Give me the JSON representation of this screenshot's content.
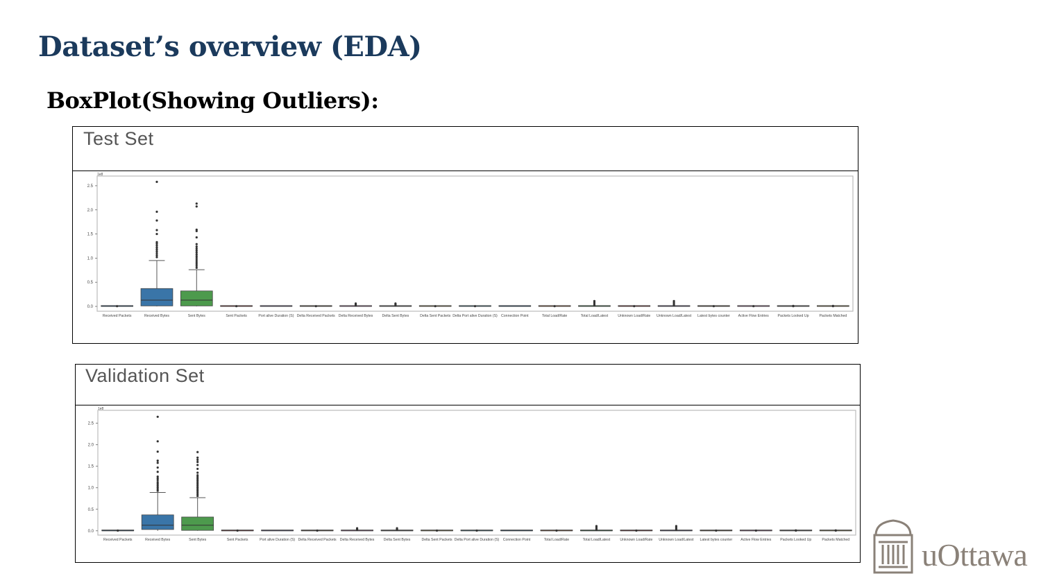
{
  "slide": {
    "title": "Dataset’s overview (EDA)",
    "subtitle": "BoxPlot(Showing Outliers):"
  },
  "logo": {
    "text": "uOttawa",
    "icon": "university-building-icon"
  },
  "colors": {
    "title": "#1b3a5c",
    "box_blue": "#3a75a8",
    "box_green": "#4d9a4d",
    "outlier": "#333333",
    "logo": "#8a8178"
  },
  "chart_data": [
    {
      "type": "box",
      "title": "Test Set",
      "y_offset_label": "1e8",
      "ylim": [
        -0.1,
        2.7
      ],
      "yticks": [
        "0.0",
        "0.5",
        "1.0",
        "1.5",
        "2.0",
        "2.5"
      ],
      "categories": [
        "Received Packets",
        "Received Bytes",
        "Sent Bytes",
        "Sent Packets",
        "Port alive Duration (S)",
        "Delta Received Packets",
        "Delta Received Bytes",
        "Delta Sent Bytes",
        "Delta Sent Packets",
        "Delta Port alive Duration (S)",
        "Connection Point",
        "Total Load/Rate",
        "Total Load/Latest",
        "Unknown Load/Rate",
        "Unknown Load/Latest",
        "Latest bytes counter",
        "Active Flow Entries",
        "Packets Looked Up",
        "Packets Matched"
      ],
      "boxes": [
        {
          "name": "Received Packets",
          "q1": 0,
          "median": 0,
          "q3": 0,
          "whisker_low": 0,
          "whisker_high": 0,
          "outliers": [
            0.005
          ],
          "color": "#3a75a8"
        },
        {
          "name": "Received Bytes",
          "q1": 0.01,
          "median": 0.13,
          "q3": 0.37,
          "whisker_low": 0.0,
          "whisker_high": 0.95,
          "outliers": [
            1.02,
            1.06,
            1.1,
            1.14,
            1.18,
            1.22,
            1.26,
            1.3,
            1.33,
            1.5,
            1.58,
            1.78,
            1.96,
            2.58
          ],
          "color": "#3a75a8"
        },
        {
          "name": "Sent Bytes",
          "q1": 0.01,
          "median": 0.13,
          "q3": 0.32,
          "whisker_low": 0.0,
          "whisker_high": 0.76,
          "outliers": [
            0.8,
            0.84,
            0.88,
            0.92,
            0.96,
            1.0,
            1.04,
            1.08,
            1.12,
            1.16,
            1.2,
            1.24,
            1.29,
            1.43,
            1.56,
            1.59,
            2.07,
            2.13
          ],
          "color": "#4d9a4d"
        },
        {
          "name": "Sent Packets",
          "q1": 0,
          "median": 0,
          "q3": 0,
          "whisker_low": 0,
          "whisker_high": 0,
          "outliers": [
            0.005
          ],
          "color": "#c44e52"
        },
        {
          "name": "Port alive Duration (S)",
          "q1": 0,
          "median": 0,
          "q3": 0,
          "whisker_low": 0,
          "whisker_high": 0,
          "outliers": [],
          "color": "#8172b2"
        },
        {
          "name": "Delta Received Packets",
          "q1": 0,
          "median": 0,
          "q3": 0,
          "whisker_low": 0,
          "whisker_high": 0,
          "outliers": [
            0.005
          ],
          "color": "#937860"
        },
        {
          "name": "Delta Received Bytes",
          "q1": 0,
          "median": 0,
          "q3": 0,
          "whisker_low": 0,
          "whisker_high": 0,
          "outliers": [
            0.02,
            0.04,
            0.06
          ],
          "color": "#da8bc3"
        },
        {
          "name": "Delta Sent Bytes",
          "q1": 0,
          "median": 0,
          "q3": 0,
          "whisker_low": 0,
          "whisker_high": 0,
          "outliers": [
            0.02,
            0.04,
            0.06
          ],
          "color": "#8c8c8c"
        },
        {
          "name": "Delta Sent Packets",
          "q1": 0,
          "median": 0,
          "q3": 0,
          "whisker_low": 0,
          "whisker_high": 0,
          "outliers": [
            0.005
          ],
          "color": "#ccb974"
        },
        {
          "name": "Delta Port alive Duration (S)",
          "q1": 0,
          "median": 0,
          "q3": 0,
          "whisker_low": 0,
          "whisker_high": 0,
          "outliers": [
            0.005
          ],
          "color": "#64b5cd"
        },
        {
          "name": "Connection Point",
          "q1": 0,
          "median": 0,
          "q3": 0,
          "whisker_low": 0,
          "whisker_high": 0,
          "outliers": [],
          "color": "#3a75a8"
        },
        {
          "name": "Total Load/Rate",
          "q1": 0,
          "median": 0,
          "q3": 0,
          "whisker_low": 0,
          "whisker_high": 0,
          "outliers": [
            0.005
          ],
          "color": "#dd8452"
        },
        {
          "name": "Total Load/Latest",
          "q1": 0,
          "median": 0,
          "q3": 0,
          "whisker_low": 0,
          "whisker_high": 0,
          "outliers": [
            0.02,
            0.05,
            0.08,
            0.11
          ],
          "color": "#55a868"
        },
        {
          "name": "Unknown Load/Rate",
          "q1": 0,
          "median": 0,
          "q3": 0,
          "whisker_low": 0,
          "whisker_high": 0,
          "outliers": [
            0.005
          ],
          "color": "#c44e52"
        },
        {
          "name": "Unknown Load/Latest",
          "q1": 0,
          "median": 0,
          "q3": 0,
          "whisker_low": 0,
          "whisker_high": 0,
          "outliers": [
            0.02,
            0.05,
            0.08,
            0.11
          ],
          "color": "#8172b2"
        },
        {
          "name": "Latest bytes counter",
          "q1": 0,
          "median": 0,
          "q3": 0,
          "whisker_low": 0,
          "whisker_high": 0,
          "outliers": [
            0.005
          ],
          "color": "#937860"
        },
        {
          "name": "Active Flow Entries",
          "q1": 0,
          "median": 0,
          "q3": 0,
          "whisker_low": 0,
          "whisker_high": 0,
          "outliers": [
            0.005
          ],
          "color": "#da8bc3"
        },
        {
          "name": "Packets Looked Up",
          "q1": 0,
          "median": 0,
          "q3": 0,
          "whisker_low": 0,
          "whisker_high": 0,
          "outliers": [
            0.005,
            0.01
          ],
          "color": "#8c8c8c"
        },
        {
          "name": "Packets Matched",
          "q1": 0,
          "median": 0,
          "q3": 0,
          "whisker_low": 0,
          "whisker_high": 0,
          "outliers": [
            0.005,
            0.01
          ],
          "color": "#ccb974"
        }
      ]
    },
    {
      "type": "box",
      "title": "Validation Set",
      "y_offset_label": "1e8",
      "ylim": [
        -0.1,
        2.8
      ],
      "yticks": [
        "0.0",
        "0.5",
        "1.0",
        "1.5",
        "2.0",
        "2.5"
      ],
      "categories": [
        "Received Packets",
        "Received Bytes",
        "Sent Bytes",
        "Sent Packets",
        "Port alive Duration (S)",
        "Delta Received Packets",
        "Delta Received Bytes",
        "Delta Sent Bytes",
        "Delta Sent Packets",
        "Delta Port alive Duration (S)",
        "Connection Point",
        "Total Load/Rate",
        "Total Load/Latest",
        "Unknown Load/Rate",
        "Unknown Load/Latest",
        "Latest bytes counter",
        "Active Flow Entries",
        "Packets Looked Up",
        "Packets Matched"
      ],
      "boxes": [
        {
          "name": "Received Packets",
          "q1": 0,
          "median": 0,
          "q3": 0,
          "whisker_low": 0,
          "whisker_high": 0,
          "outliers": [
            0.005
          ],
          "color": "#3a75a8"
        },
        {
          "name": "Received Bytes",
          "q1": 0.03,
          "median": 0.13,
          "q3": 0.37,
          "whisker_low": 0.0,
          "whisker_high": 0.89,
          "outliers": [
            0.93,
            0.97,
            1.01,
            1.05,
            1.09,
            1.13,
            1.18,
            1.22,
            1.26,
            1.37,
            1.47,
            1.58,
            1.63,
            1.84,
            2.08,
            2.65
          ],
          "color": "#3a75a8"
        },
        {
          "name": "Sent Bytes",
          "q1": 0.01,
          "median": 0.13,
          "q3": 0.32,
          "whisker_low": 0.0,
          "whisker_high": 0.77,
          "outliers": [
            0.81,
            0.85,
            0.89,
            0.93,
            0.97,
            1.01,
            1.05,
            1.09,
            1.13,
            1.17,
            1.21,
            1.25,
            1.29,
            1.35,
            1.44,
            1.53,
            1.6,
            1.65,
            1.7,
            1.83
          ],
          "color": "#4d9a4d"
        },
        {
          "name": "Sent Packets",
          "q1": 0,
          "median": 0,
          "q3": 0,
          "whisker_low": 0,
          "whisker_high": 0,
          "outliers": [
            0.005
          ],
          "color": "#c44e52"
        },
        {
          "name": "Port alive Duration (S)",
          "q1": 0,
          "median": 0,
          "q3": 0,
          "whisker_low": 0,
          "whisker_high": 0,
          "outliers": [],
          "color": "#8172b2"
        },
        {
          "name": "Delta Received Packets",
          "q1": 0,
          "median": 0,
          "q3": 0,
          "whisker_low": 0,
          "whisker_high": 0,
          "outliers": [
            0.005
          ],
          "color": "#937860"
        },
        {
          "name": "Delta Received Bytes",
          "q1": 0,
          "median": 0,
          "q3": 0,
          "whisker_low": 0,
          "whisker_high": 0,
          "outliers": [
            0.02,
            0.04,
            0.06
          ],
          "color": "#da8bc3"
        },
        {
          "name": "Delta Sent Bytes",
          "q1": 0,
          "median": 0,
          "q3": 0,
          "whisker_low": 0,
          "whisker_high": 0,
          "outliers": [
            0.02,
            0.04,
            0.06
          ],
          "color": "#8c8c8c"
        },
        {
          "name": "Delta Sent Packets",
          "q1": 0,
          "median": 0,
          "q3": 0,
          "whisker_low": 0,
          "whisker_high": 0,
          "outliers": [
            0.005
          ],
          "color": "#ccb974"
        },
        {
          "name": "Delta Port alive Duration (S)",
          "q1": 0,
          "median": 0,
          "q3": 0,
          "whisker_low": 0,
          "whisker_high": 0,
          "outliers": [
            0.005
          ],
          "color": "#64b5cd"
        },
        {
          "name": "Connection Point",
          "q1": 0,
          "median": 0,
          "q3": 0,
          "whisker_low": 0,
          "whisker_high": 0,
          "outliers": [],
          "color": "#3a75a8"
        },
        {
          "name": "Total Load/Rate",
          "q1": 0,
          "median": 0,
          "q3": 0,
          "whisker_low": 0,
          "whisker_high": 0,
          "outliers": [
            0.005
          ],
          "color": "#dd8452"
        },
        {
          "name": "Total Load/Latest",
          "q1": 0,
          "median": 0,
          "q3": 0,
          "whisker_low": 0,
          "whisker_high": 0,
          "outliers": [
            0.02,
            0.05,
            0.08,
            0.11
          ],
          "color": "#55a868"
        },
        {
          "name": "Unknown Load/Rate",
          "q1": 0,
          "median": 0,
          "q3": 0,
          "whisker_low": 0,
          "whisker_high": 0,
          "outliers": [
            0.005
          ],
          "color": "#c44e52"
        },
        {
          "name": "Unknown Load/Latest",
          "q1": 0,
          "median": 0,
          "q3": 0,
          "whisker_low": 0,
          "whisker_high": 0,
          "outliers": [
            0.02,
            0.05,
            0.08,
            0.11
          ],
          "color": "#8172b2"
        },
        {
          "name": "Latest bytes counter",
          "q1": 0,
          "median": 0,
          "q3": 0,
          "whisker_low": 0,
          "whisker_high": 0,
          "outliers": [
            0.005
          ],
          "color": "#937860"
        },
        {
          "name": "Active Flow Entries",
          "q1": 0,
          "median": 0,
          "q3": 0,
          "whisker_low": 0,
          "whisker_high": 0,
          "outliers": [
            0.005
          ],
          "color": "#da8bc3"
        },
        {
          "name": "Packets Looked Up",
          "q1": 0,
          "median": 0,
          "q3": 0,
          "whisker_low": 0,
          "whisker_high": 0,
          "outliers": [
            0.005,
            0.01
          ],
          "color": "#8c8c8c"
        },
        {
          "name": "Packets Matched",
          "q1": 0,
          "median": 0,
          "q3": 0,
          "whisker_low": 0,
          "whisker_high": 0,
          "outliers": [
            0.005,
            0.01
          ],
          "color": "#ccb974"
        }
      ]
    }
  ]
}
